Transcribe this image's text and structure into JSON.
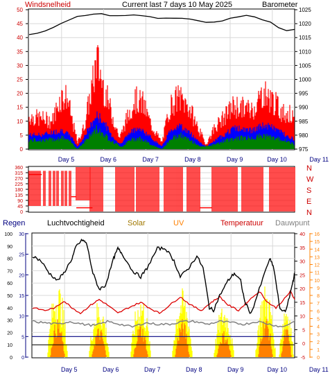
{
  "header": {
    "left_label": "Windsnelheid",
    "center_label": "Current last 7 days 10 May 2025",
    "right_label": "Barometer"
  },
  "colors": {
    "wind_gust": "#ff0000",
    "wind_avg": "#0000ff",
    "wind_low": "#008000",
    "barometer": "#000000",
    "direction": "#ff0000",
    "rain": "#000080",
    "humidity": "#000000",
    "solar": "#ffff00",
    "uv": "#ff8000",
    "temperature": "#dd0000",
    "dewpoint": "#808080",
    "axis_left": "#cc0000",
    "axis_rain": "#000080",
    "axis_temp": "#cc0000",
    "axis_uv": "#ff8000",
    "day_label": "#000080"
  },
  "chart_data": [
    {
      "name": "wind-barometer",
      "type": "line",
      "day_labels": [
        "Day 5",
        "Day 6",
        "Day 7",
        "Day 8",
        "Day 9",
        "Day 10",
        "Day 11"
      ],
      "left_axis": {
        "min": 0,
        "max": 50,
        "ticks": [
          0,
          5,
          10,
          15,
          20,
          25,
          30,
          35,
          40,
          45,
          50
        ]
      },
      "right_axis": {
        "min": 975,
        "max": 1025,
        "ticks": [
          975,
          980,
          985,
          990,
          995,
          1000,
          1005,
          1010,
          1015,
          1020,
          1025
        ]
      },
      "barometer": [
        1016,
        1016.5,
        1017.5,
        1018.5,
        1020,
        1021.5,
        1022.5,
        1023,
        1023.5,
        1023.5,
        1023,
        1023,
        1023,
        1023,
        1023,
        1022.5,
        1022,
        1022,
        1022,
        1022,
        1021.5,
        1021,
        1020.5,
        1020.5,
        1021,
        1022,
        1022.5,
        1023,
        1022.5,
        1021.5,
        1020.5,
        1018.5,
        1017.5,
        1018
      ],
      "gust_envelope": [
        [
          0,
          15
        ],
        [
          0.3,
          14
        ],
        [
          0.55,
          13
        ],
        [
          0.75,
          24
        ],
        [
          0.9,
          24
        ],
        [
          1.0,
          15
        ],
        [
          1.15,
          3
        ],
        [
          1.3,
          10
        ],
        [
          1.55,
          34
        ],
        [
          1.6,
          42
        ],
        [
          1.75,
          30
        ],
        [
          1.95,
          17
        ],
        [
          2.15,
          5
        ],
        [
          2.3,
          13
        ],
        [
          2.5,
          23
        ],
        [
          2.7,
          21
        ],
        [
          2.9,
          11
        ],
        [
          3.15,
          3
        ],
        [
          3.35,
          20
        ],
        [
          3.55,
          24
        ],
        [
          3.8,
          19
        ],
        [
          4.05,
          8
        ],
        [
          4.2,
          2
        ],
        [
          4.4,
          10
        ],
        [
          4.65,
          15
        ],
        [
          4.85,
          20
        ],
        [
          5.05,
          19
        ],
        [
          5.3,
          18
        ],
        [
          5.55,
          26
        ],
        [
          5.8,
          22
        ],
        [
          6.0,
          17
        ],
        [
          6.2,
          16
        ],
        [
          6.3,
          12
        ]
      ],
      "avg_envelope": [
        [
          0,
          6
        ],
        [
          0.3,
          6
        ],
        [
          0.55,
          7
        ],
        [
          0.8,
          8
        ],
        [
          1.0,
          5
        ],
        [
          1.15,
          1
        ],
        [
          1.3,
          5
        ],
        [
          1.6,
          14
        ],
        [
          1.75,
          12
        ],
        [
          1.95,
          6
        ],
        [
          2.15,
          2
        ],
        [
          2.35,
          6
        ],
        [
          2.55,
          9
        ],
        [
          2.75,
          7
        ],
        [
          2.95,
          4
        ],
        [
          3.15,
          1
        ],
        [
          3.35,
          8
        ],
        [
          3.55,
          10
        ],
        [
          3.8,
          7
        ],
        [
          4.05,
          3
        ],
        [
          4.2,
          1
        ],
        [
          4.45,
          4
        ],
        [
          4.7,
          7
        ],
        [
          4.9,
          9
        ],
        [
          5.1,
          8
        ],
        [
          5.35,
          8
        ],
        [
          5.55,
          10
        ],
        [
          5.8,
          9
        ],
        [
          6.0,
          7
        ],
        [
          6.2,
          5
        ],
        [
          6.3,
          4
        ]
      ],
      "low_envelope": [
        [
          0,
          4
        ],
        [
          0.4,
          4
        ],
        [
          0.8,
          5
        ],
        [
          1.0,
          3
        ],
        [
          1.15,
          0
        ],
        [
          1.3,
          3
        ],
        [
          1.6,
          9
        ],
        [
          1.75,
          7
        ],
        [
          2.0,
          3
        ],
        [
          2.2,
          1
        ],
        [
          2.4,
          4
        ],
        [
          2.6,
          5
        ],
        [
          2.9,
          2
        ],
        [
          3.15,
          0
        ],
        [
          3.4,
          5
        ],
        [
          3.6,
          6
        ],
        [
          3.9,
          3
        ],
        [
          4.1,
          1
        ],
        [
          4.4,
          2
        ],
        [
          4.7,
          4
        ],
        [
          4.95,
          5
        ],
        [
          5.3,
          5
        ],
        [
          5.55,
          6
        ],
        [
          5.8,
          5
        ],
        [
          6.05,
          4
        ],
        [
          6.3,
          2
        ]
      ]
    },
    {
      "name": "wind-direction",
      "type": "scatter",
      "left_axis": {
        "min": 0,
        "max": 360,
        "ticks": [
          0,
          45,
          90,
          135,
          180,
          225,
          270,
          315,
          360
        ]
      },
      "right_labels": [
        "N",
        "W",
        "S",
        "E",
        "N"
      ],
      "blocks": [
        [
          0.0,
          0.28,
          45,
          330
        ],
        [
          0.35,
          0.4,
          45,
          330
        ],
        [
          0.48,
          0.52,
          45,
          330
        ],
        [
          0.58,
          0.62,
          45,
          330
        ],
        [
          0.66,
          0.72,
          45,
          330
        ],
        [
          0.78,
          0.82,
          45,
          330
        ],
        [
          0.86,
          0.92,
          45,
          330
        ],
        [
          0.96,
          1.0,
          45,
          330
        ],
        [
          1.12,
          1.45,
          90,
          360
        ],
        [
          1.45,
          1.75,
          0,
          360
        ],
        [
          2.05,
          2.5,
          0,
          360
        ],
        [
          2.55,
          3.1,
          0,
          360
        ],
        [
          3.2,
          3.65,
          0,
          360
        ],
        [
          3.75,
          4.05,
          0,
          360
        ],
        [
          4.35,
          4.95,
          0,
          360
        ],
        [
          5.05,
          5.55,
          0,
          360
        ],
        [
          5.7,
          6.3,
          0,
          360
        ]
      ],
      "steady_segments": [
        [
          0.0,
          0.3,
          300
        ],
        [
          1.0,
          1.12,
          120
        ],
        [
          1.12,
          1.5,
          30
        ],
        [
          4.05,
          4.35,
          30
        ]
      ]
    },
    {
      "name": "rain-humidity-solar-uv-temp",
      "type": "line",
      "day_labels": [
        "Day 5",
        "Day 6",
        "Day 7",
        "Day 8",
        "Day 9",
        "Day 10",
        "Day 11"
      ],
      "header": {
        "rain": "Regen",
        "humidity": "Luchtvochtigheid",
        "solar": "Solar",
        "uv": "UV",
        "temperature": "Temperatuur",
        "dewpoint": "Dauwpunt"
      },
      "humidity_axis": {
        "min": 0,
        "max": 100,
        "ticks": [
          0,
          10,
          20,
          30,
          40,
          50,
          60,
          70,
          80,
          90,
          100
        ]
      },
      "rain_axis": {
        "min": 0,
        "max": 30,
        "ticks": [
          0,
          5,
          10,
          15,
          20,
          25,
          30
        ]
      },
      "temp_axis": {
        "min": -5,
        "max": 40,
        "ticks": [
          -5,
          0,
          5,
          10,
          15,
          20,
          25,
          30,
          35,
          40
        ]
      },
      "uv_axis": {
        "min": 0,
        "max": 16,
        "ticks": [
          0,
          1,
          2,
          3,
          4,
          5,
          6,
          7,
          8,
          9,
          10,
          11,
          12,
          13,
          14,
          15,
          16
        ]
      },
      "humidity": [
        [
          0,
          82
        ],
        [
          0.2,
          78
        ],
        [
          0.4,
          68
        ],
        [
          0.6,
          62
        ],
        [
          0.75,
          68
        ],
        [
          0.95,
          80
        ],
        [
          1.05,
          90
        ],
        [
          1.2,
          95
        ],
        [
          1.3,
          92
        ],
        [
          1.45,
          68
        ],
        [
          1.6,
          55
        ],
        [
          1.75,
          58
        ],
        [
          1.95,
          80
        ],
        [
          2.05,
          88
        ],
        [
          2.15,
          84
        ],
        [
          2.4,
          70
        ],
        [
          2.6,
          65
        ],
        [
          2.75,
          72
        ],
        [
          3.0,
          88
        ],
        [
          3.2,
          88
        ],
        [
          3.4,
          78
        ],
        [
          3.55,
          65
        ],
        [
          3.75,
          72
        ],
        [
          3.95,
          82
        ],
        [
          4.1,
          72
        ],
        [
          4.25,
          40
        ],
        [
          4.35,
          38
        ],
        [
          4.5,
          50
        ],
        [
          4.7,
          62
        ],
        [
          4.85,
          68
        ],
        [
          5.0,
          62
        ],
        [
          5.1,
          45
        ],
        [
          5.25,
          35
        ],
        [
          5.45,
          55
        ],
        [
          5.7,
          80
        ],
        [
          5.8,
          72
        ],
        [
          5.95,
          38
        ],
        [
          6.1,
          38
        ],
        [
          6.25,
          60
        ],
        [
          6.3,
          68
        ]
      ],
      "temperature": [
        [
          0,
          13
        ],
        [
          0.3,
          12
        ],
        [
          0.55,
          13
        ],
        [
          0.75,
          15.5
        ],
        [
          0.95,
          13
        ],
        [
          1.15,
          11
        ],
        [
          1.4,
          14
        ],
        [
          1.6,
          16
        ],
        [
          1.8,
          14
        ],
        [
          2.05,
          11
        ],
        [
          2.3,
          13
        ],
        [
          2.6,
          15
        ],
        [
          2.8,
          13
        ],
        [
          3.05,
          11
        ],
        [
          3.3,
          14
        ],
        [
          3.55,
          17
        ],
        [
          3.8,
          14
        ],
        [
          4.05,
          12
        ],
        [
          4.3,
          15
        ],
        [
          4.5,
          17
        ],
        [
          4.7,
          14
        ],
        [
          4.95,
          12
        ],
        [
          5.15,
          15
        ],
        [
          5.45,
          19
        ],
        [
          5.65,
          15
        ],
        [
          5.85,
          13
        ],
        [
          6.1,
          17
        ],
        [
          6.2,
          19
        ],
        [
          6.3,
          16
        ]
      ],
      "dewpoint": [
        [
          0,
          8
        ],
        [
          0.3,
          7.5
        ],
        [
          0.6,
          7
        ],
        [
          0.9,
          8
        ],
        [
          1.2,
          7
        ],
        [
          1.5,
          6.5
        ],
        [
          1.8,
          8
        ],
        [
          2.1,
          7
        ],
        [
          2.4,
          6
        ],
        [
          2.7,
          7.5
        ],
        [
          3.0,
          7
        ],
        [
          3.3,
          7
        ],
        [
          3.6,
          8
        ],
        [
          3.9,
          8
        ],
        [
          4.2,
          7
        ],
        [
          4.5,
          8
        ],
        [
          4.8,
          7.5
        ],
        [
          5.1,
          7
        ],
        [
          5.4,
          8
        ],
        [
          5.7,
          7
        ],
        [
          6.0,
          6
        ],
        [
          6.3,
          8
        ]
      ],
      "solar_peaks": [
        {
          "center": 0.6,
          "width": 0.5,
          "height": 62
        },
        {
          "center": 1.6,
          "width": 0.5,
          "height": 48
        },
        {
          "center": 2.6,
          "width": 0.5,
          "height": 52
        },
        {
          "center": 3.6,
          "width": 0.5,
          "height": 56
        },
        {
          "center": 4.6,
          "width": 0.5,
          "height": 44
        },
        {
          "center": 5.6,
          "width": 0.5,
          "height": 60
        },
        {
          "center": 6.1,
          "width": 0.35,
          "height": 48
        }
      ],
      "uv_peaks": [
        {
          "center": 0.6,
          "width": 0.35,
          "height": 5
        },
        {
          "center": 1.6,
          "width": 0.35,
          "height": 4
        },
        {
          "center": 2.6,
          "width": 0.35,
          "height": 4.5
        },
        {
          "center": 3.6,
          "width": 0.35,
          "height": 5
        },
        {
          "center": 4.6,
          "width": 0.35,
          "height": 3.5
        },
        {
          "center": 5.6,
          "width": 0.35,
          "height": 5.5
        },
        {
          "center": 6.1,
          "width": 0.25,
          "height": 4
        }
      ],
      "rain_level": 5,
      "baseline_temp": 0
    }
  ]
}
